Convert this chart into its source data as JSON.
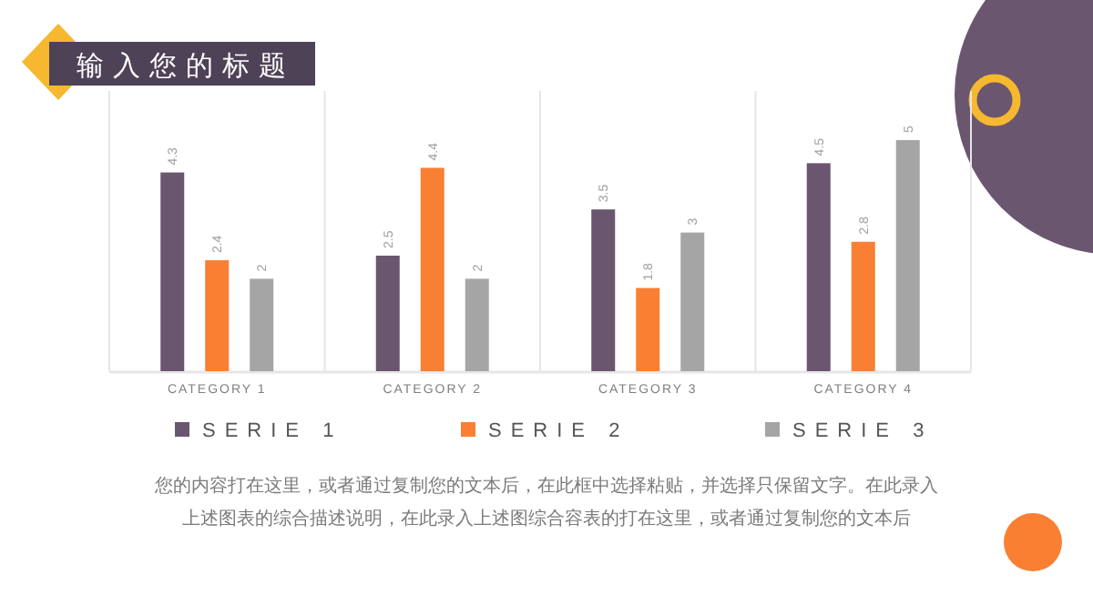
{
  "chart_data": {
    "type": "bar",
    "title": "输入您的标题",
    "categories": [
      "CATEGORY 1",
      "CATEGORY 2",
      "CATEGORY 3",
      "CATEGORY 4"
    ],
    "series": [
      {
        "name": "SERIE 1",
        "color": "#6b5670",
        "values": [
          4.3,
          2.5,
          3.5,
          4.5
        ]
      },
      {
        "name": "SERIE 2",
        "color": "#f97f33",
        "values": [
          2.4,
          4.4,
          1.8,
          2.8
        ]
      },
      {
        "name": "SERIE 3",
        "color": "#a5a5a5",
        "values": [
          2,
          2,
          3,
          5
        ]
      }
    ],
    "data_labels": true,
    "legend": "bottom",
    "annotations": [
      "您的内容打在这里，或者通过复制您的文本后，在此框中选择粘贴，并选择只保留文字。在此录入",
      "上述图表的综合描述说明，在此录入上述图综合容表的打在这里，或者通过复制您的文本后"
    ]
  }
}
